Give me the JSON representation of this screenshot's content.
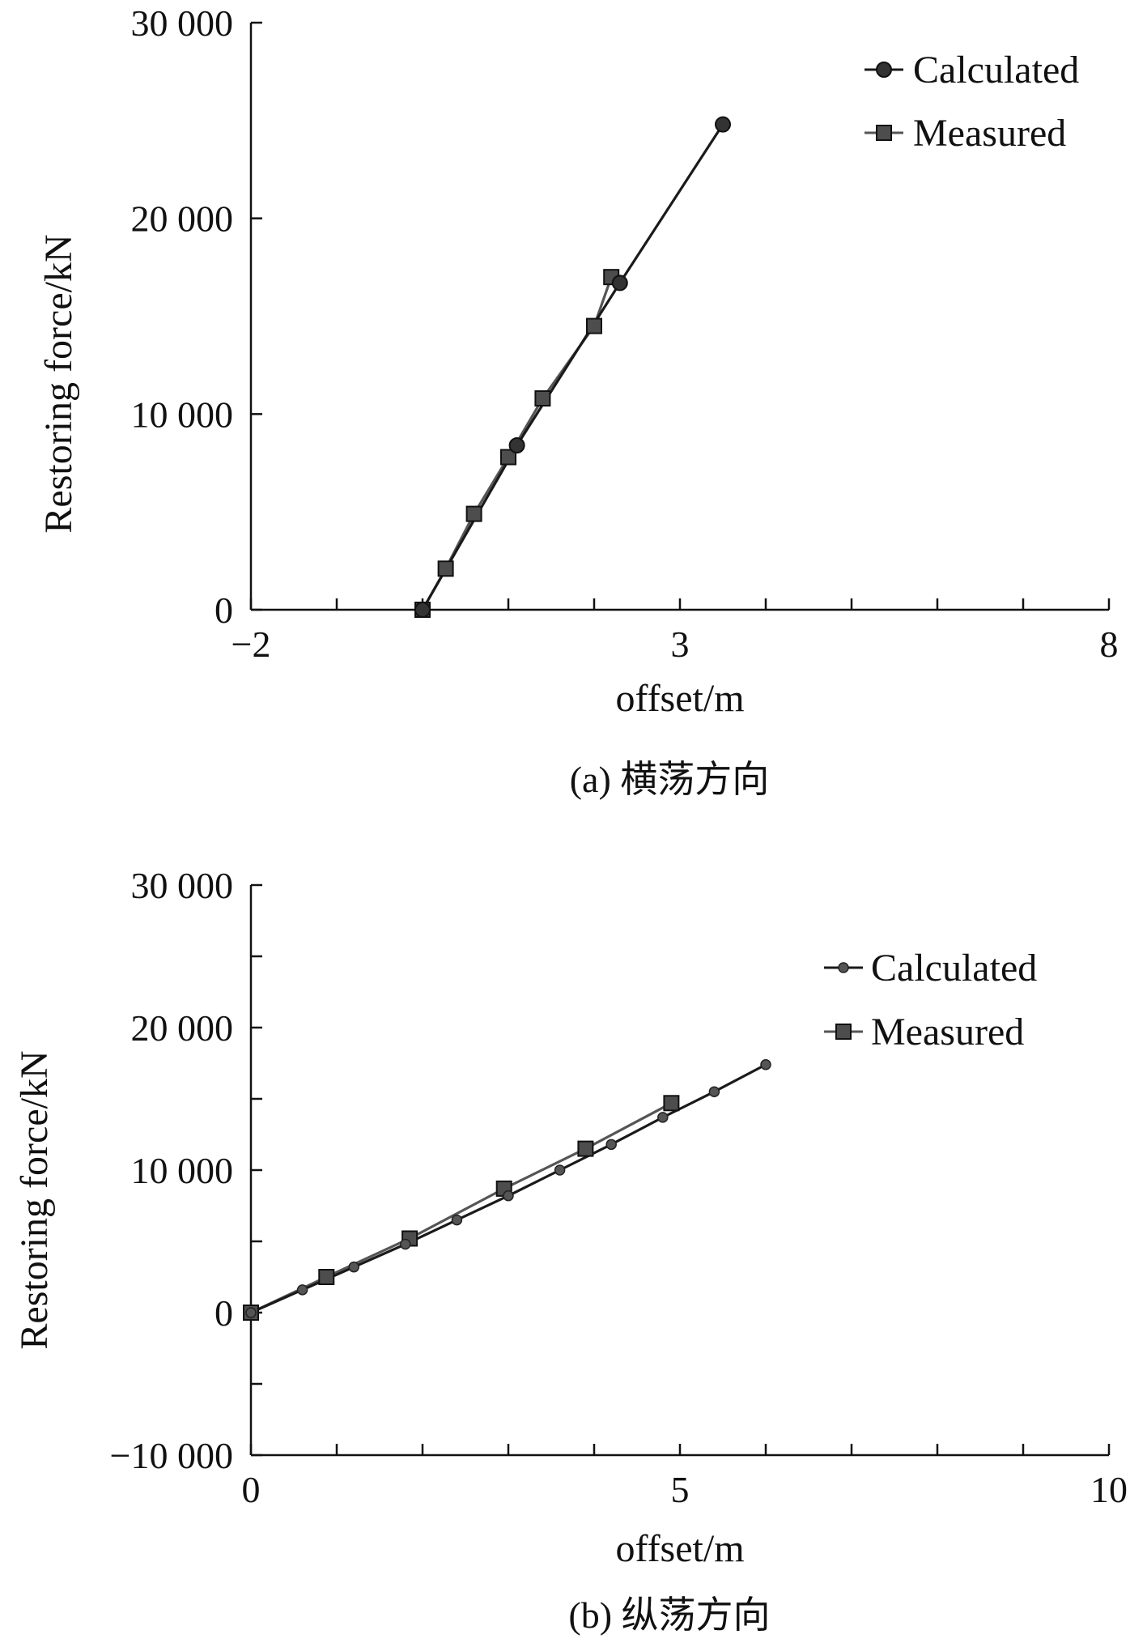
{
  "chart_data": [
    {
      "type": "line",
      "caption": "(a) 横荡方向",
      "xlabel": "offset/m",
      "ylabel": "Restoring force/kN",
      "xlim": [
        -2,
        8
      ],
      "ylim": [
        0,
        30000
      ],
      "x_ticks": [
        -2,
        3,
        8
      ],
      "x_tick_labels": [
        "−2",
        "3",
        "8"
      ],
      "x_minor_step": 1,
      "y_ticks": [
        0,
        10000,
        20000,
        30000
      ],
      "y_tick_labels": [
        "0",
        "10 000",
        "20 000",
        "30 000"
      ],
      "y_minor_step": 10000,
      "legend_position": "top-right",
      "series": [
        {
          "name": "Calculated",
          "marker": "circle",
          "color": "#1a1a1a",
          "marker_color": "#333333",
          "x": [
            0.0,
            1.1,
            2.3,
            3.5
          ],
          "y": [
            0,
            8400,
            16700,
            24800
          ]
        },
        {
          "name": "Measured",
          "marker": "square",
          "color": "#555555",
          "marker_color": "#4d4d4d",
          "x": [
            0.0,
            0.27,
            0.6,
            1.0,
            1.4,
            2.0,
            2.2
          ],
          "y": [
            0,
            2100,
            4900,
            7800,
            10800,
            14500,
            17000
          ]
        }
      ]
    },
    {
      "type": "line",
      "caption": "(b) 纵荡方向",
      "xlabel": "offset/m",
      "ylabel": "Restoring force/kN",
      "xlim": [
        0,
        10
      ],
      "ylim": [
        -10000,
        30000
      ],
      "x_ticks": [
        0,
        5,
        10
      ],
      "x_tick_labels": [
        "0",
        "5",
        "10"
      ],
      "x_minor_step": 1,
      "y_ticks": [
        -10000,
        0,
        10000,
        20000,
        30000
      ],
      "y_tick_labels": [
        "−10 000",
        "0",
        "10 000",
        "20 000",
        "30 000"
      ],
      "y_minor_step": 5000,
      "legend_position": "top-right",
      "series": [
        {
          "name": "Calculated",
          "marker": "circle-small",
          "color": "#1a1a1a",
          "marker_color": "#555555",
          "x": [
            0,
            0.6,
            1.2,
            1.8,
            2.4,
            3.0,
            3.6,
            4.2,
            4.8,
            5.4,
            6.0
          ],
          "y": [
            0,
            1600,
            3200,
            4800,
            6500,
            8200,
            10000,
            11800,
            13700,
            15500,
            17400
          ]
        },
        {
          "name": "Measured",
          "marker": "square",
          "color": "#555555",
          "marker_color": "#4d4d4d",
          "x": [
            0,
            0.88,
            1.85,
            2.95,
            3.9,
            4.9
          ],
          "y": [
            0,
            2500,
            5200,
            8700,
            11500,
            14700
          ]
        }
      ]
    }
  ]
}
